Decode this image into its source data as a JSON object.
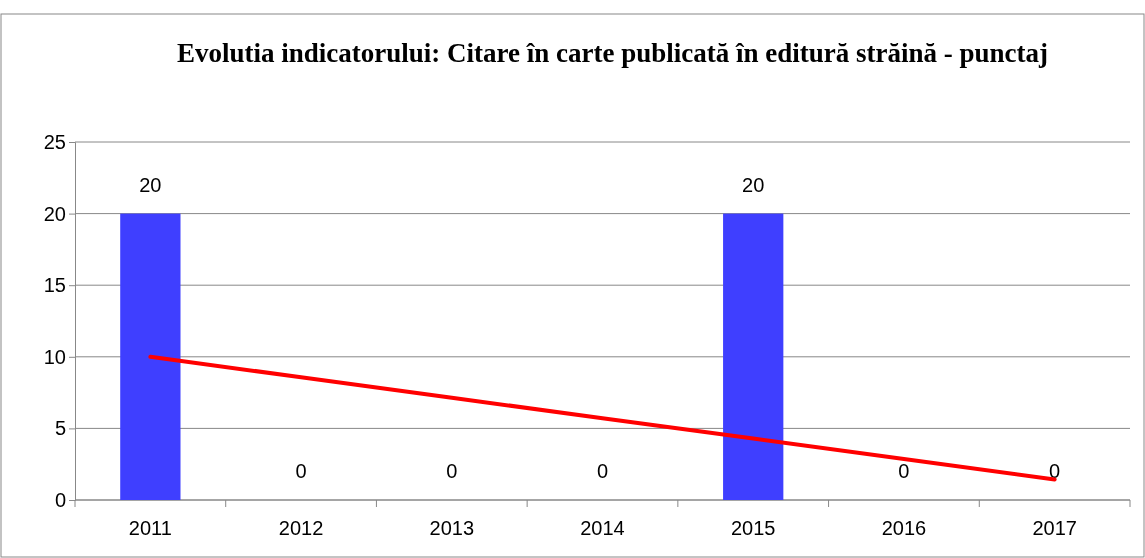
{
  "chart_data": {
    "type": "bar",
    "title": "Evolutia indicatorului: Citare în carte publicată în editură străină - punctaj",
    "categories": [
      "2011",
      "2012",
      "2013",
      "2014",
      "2015",
      "2016",
      "2017"
    ],
    "series": [
      {
        "color": "#3f3fff",
        "values": [
          20,
          0,
          0,
          0,
          20,
          0,
          0
        ],
        "value_labels": [
          "20",
          "0",
          "0",
          "0",
          "20",
          "0",
          "0"
        ]
      },
      {
        "type": "line",
        "color": "#ff0000",
        "values": [
          10,
          8.57,
          7.14,
          5.71,
          4.29,
          2.86,
          1.43
        ]
      }
    ],
    "ylim": [
      0,
      25
    ],
    "yticks": [
      0,
      5,
      10,
      15,
      20,
      25
    ],
    "grid": "y"
  }
}
